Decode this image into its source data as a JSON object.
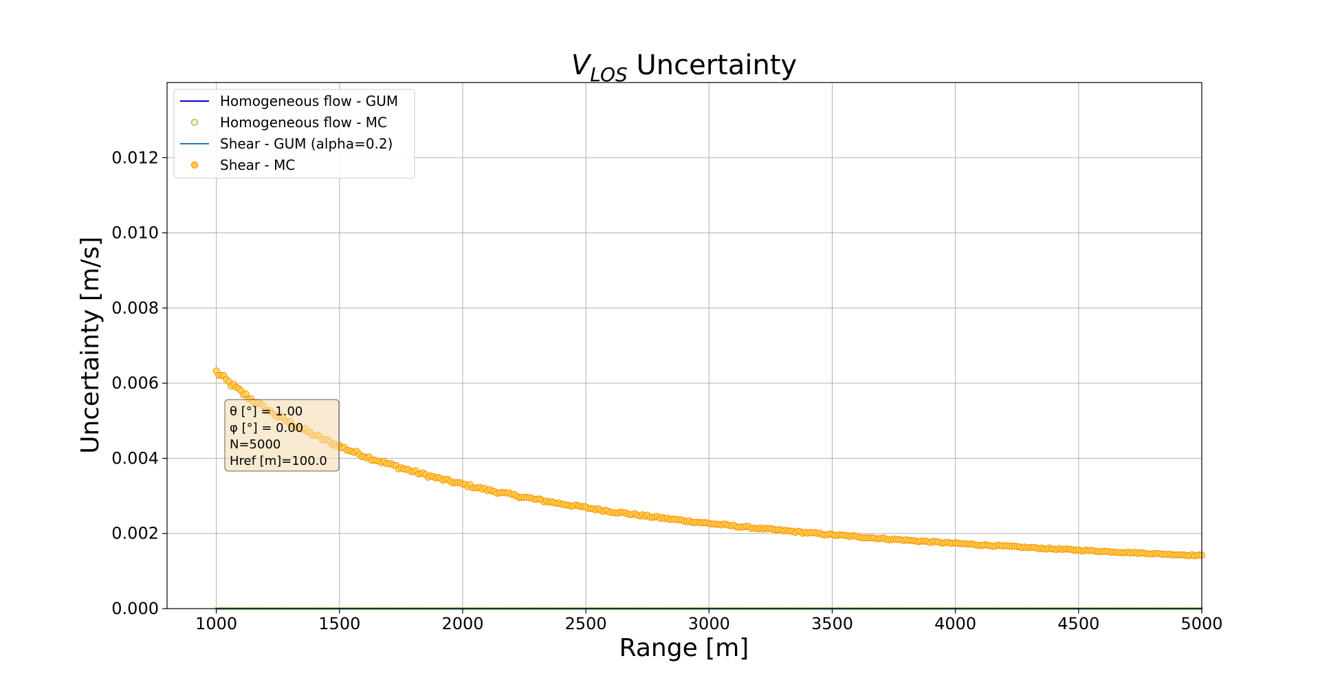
{
  "chart_data": {
    "type": "scatter",
    "title_main": "V",
    "title_sub": "LOS",
    "title_rest": " Uncertainty",
    "xlabel": "Range [m]",
    "ylabel": "Uncertainty [m/s]",
    "xlim": [
      800,
      5000
    ],
    "ylim": [
      0,
      0.014
    ],
    "xticks": [
      1000,
      1500,
      2000,
      2500,
      3000,
      3500,
      4000,
      4500,
      5000
    ],
    "xtick_labels": [
      "1000",
      "1500",
      "2000",
      "2500",
      "3000",
      "3500",
      "4000",
      "4500",
      "5000"
    ],
    "yticks": [
      0,
      0.002,
      0.004,
      0.006,
      0.008,
      0.01,
      0.012
    ],
    "ytick_labels": [
      "0.000",
      "0.002",
      "0.004",
      "0.006",
      "0.008",
      "0.010",
      "0.012"
    ],
    "grid": true,
    "legend_position": "top-left",
    "series": [
      {
        "name": "Homogeneous flow - GUM",
        "kind": "line",
        "color": "#0000cc",
        "x": [
          1000,
          5000
        ],
        "y": [
          0,
          0
        ]
      },
      {
        "name": "Homogeneous flow - MC",
        "kind": "scatter",
        "color": "#8fbc3a",
        "x_start": 1000,
        "x_end": 5000,
        "x_step": 10,
        "y_constant": 0
      },
      {
        "name": "Shear - GUM (alpha=0.2)",
        "kind": "line",
        "color": "#1f77b4",
        "x": [
          1000,
          5000
        ],
        "y": [
          0,
          0
        ]
      },
      {
        "name": "Shear - MC",
        "kind": "scatter",
        "color": "#ff8c00",
        "fill": "#ffd24a",
        "x_start": 1000,
        "x_end": 5000,
        "x_step": 10,
        "amplitude": 6.3,
        "exponent": 0.93,
        "unit_scale": 0.001
      }
    ],
    "annotation": {
      "lines": [
        "θ [°] = 1.00",
        "φ [°] = 0.00",
        "N=5000",
        "Href [m]=100.0"
      ],
      "facecolor": "#f5deb3",
      "edgecolor": "#000000"
    }
  }
}
